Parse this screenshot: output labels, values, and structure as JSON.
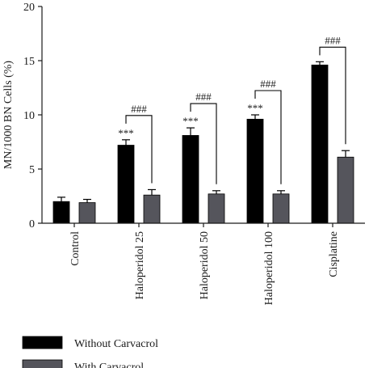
{
  "chart_data": {
    "type": "bar",
    "title": "",
    "xlabel": "",
    "ylabel": "MN/1000 BN Cells (%)",
    "ylim": [
      0,
      20
    ],
    "yticks": [
      0,
      5,
      10,
      15,
      20
    ],
    "categories": [
      "Control",
      "Haloperidol 25",
      "Haloperidol 50",
      "Haloperidol 100",
      "Cisplatine"
    ],
    "series": [
      {
        "name": "Without Carvacrol",
        "color": "#000000",
        "values": [
          2.0,
          7.2,
          8.1,
          9.6,
          14.6
        ],
        "errors": [
          0.4,
          0.5,
          0.7,
          0.4,
          0.3
        ],
        "annotations": [
          "",
          "***",
          "***",
          "***",
          ""
        ]
      },
      {
        "name": "With Carvacrol",
        "color": "#55555c",
        "values": [
          1.9,
          2.6,
          2.7,
          2.7,
          6.1
        ],
        "errors": [
          0.3,
          0.5,
          0.3,
          0.3,
          0.6
        ],
        "annotations": [
          "",
          "",
          "",
          "",
          ""
        ]
      }
    ],
    "brackets": [
      {
        "category_index": 1,
        "label": "###"
      },
      {
        "category_index": 2,
        "label": "###"
      },
      {
        "category_index": 3,
        "label": "###"
      },
      {
        "category_index": 4,
        "label": "###"
      }
    ],
    "grid": false,
    "legend_position": "bottom-left"
  }
}
